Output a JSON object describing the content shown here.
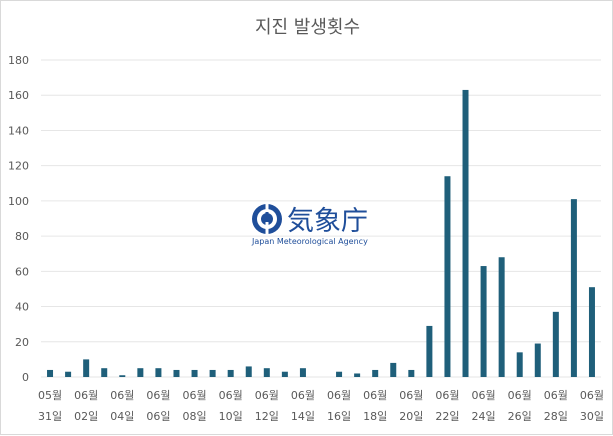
{
  "chart_data": {
    "type": "bar",
    "title": "지진 발생횟수",
    "xlabel": "",
    "ylabel": "",
    "ylim": [
      0,
      180
    ],
    "yticks": [
      0,
      20,
      40,
      60,
      80,
      100,
      120,
      140,
      160,
      180
    ],
    "grid": true,
    "legend": "none",
    "categories": [
      "05-31",
      "06-01",
      "06-02",
      "06-03",
      "06-04",
      "06-05",
      "06-06",
      "06-07",
      "06-08",
      "06-09",
      "06-10",
      "06-11",
      "06-12",
      "06-13",
      "06-14",
      "06-15",
      "06-16",
      "06-17",
      "06-18",
      "06-19",
      "06-20",
      "06-21",
      "06-22",
      "06-23",
      "06-24",
      "06-25",
      "06-26",
      "06-27",
      "06-28",
      "06-29",
      "06-30"
    ],
    "values": [
      4,
      3,
      10,
      5,
      1,
      5,
      5,
      4,
      4,
      4,
      4,
      6,
      5,
      3,
      5,
      0,
      3,
      2,
      4,
      8,
      4,
      29,
      114,
      163,
      63,
      68,
      14,
      19,
      37,
      101,
      51
    ],
    "tick_labels": [
      {
        "line1": "05월",
        "line2": "31일"
      },
      {
        "line1": "06월",
        "line2": "02일"
      },
      {
        "line1": "06월",
        "line2": "04일"
      },
      {
        "line1": "06월",
        "line2": "06일"
      },
      {
        "line1": "06월",
        "line2": "08일"
      },
      {
        "line1": "06월",
        "line2": "10일"
      },
      {
        "line1": "06월",
        "line2": "12일"
      },
      {
        "line1": "06월",
        "line2": "14일"
      },
      {
        "line1": "06월",
        "line2": "16일"
      },
      {
        "line1": "06월",
        "line2": "18일"
      },
      {
        "line1": "06월",
        "line2": "20일"
      },
      {
        "line1": "06월",
        "line2": "22일"
      },
      {
        "line1": "06월",
        "line2": "24일"
      },
      {
        "line1": "06월",
        "line2": "26일"
      },
      {
        "line1": "06월",
        "line2": "28일"
      },
      {
        "line1": "06월",
        "line2": "30일"
      }
    ],
    "colors": {
      "bar": "#1f5f7a",
      "grid": "#e6e6e6",
      "text": "#595959"
    }
  },
  "watermark": {
    "name": "気象庁",
    "subtitle": "Japan Meteorological Agency",
    "icon": "jma-logo-icon",
    "color": "#1f4e9a"
  }
}
